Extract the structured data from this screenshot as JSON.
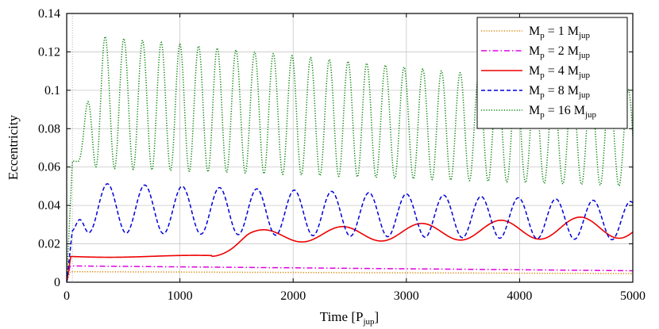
{
  "chart_data": {
    "type": "line",
    "title": "",
    "xlabel": "Time [P",
    "xlabel_sub": "jup",
    "xlabel_suffix": "]",
    "ylabel": "Eccentricity",
    "xlim": [
      0,
      5000
    ],
    "ylim": [
      0,
      0.14
    ],
    "xticks": [
      0,
      1000,
      2000,
      3000,
      4000,
      5000
    ],
    "xtick_labels": [
      "0",
      "1000",
      "2000",
      "3000",
      "4000",
      "5000"
    ],
    "yticks": [
      0,
      0.02,
      0.04,
      0.06,
      0.08,
      0.1,
      0.12,
      0.14
    ],
    "ytick_labels": [
      "0",
      "0.02",
      "0.04",
      "0.06",
      "0.08",
      "0.1",
      "0.12",
      "0.14"
    ],
    "grid": true,
    "legend_position": "top-right",
    "series": [
      {
        "name": "Mp = 1 Mjup",
        "legend": {
          "pre": "M",
          "pre_sub": "p",
          "mid": " = 1 M",
          "post_sub": "jup"
        },
        "color": "#d98200",
        "dash": "dotted",
        "model": {
          "kind": "flat",
          "e_start": 0.0055,
          "e_end": 0.0045
        }
      },
      {
        "name": "Mp = 2 Mjup",
        "legend": {
          "pre": "M",
          "pre_sub": "p",
          "mid": " = 2 M",
          "post_sub": "jup"
        },
        "color": "#e000e0",
        "dash": "dashdot",
        "model": {
          "kind": "flat",
          "e_start": 0.0085,
          "e_end": 0.006
        }
      },
      {
        "name": "Mp = 4 Mjup",
        "legend": {
          "pre": "M",
          "pre_sub": "p",
          "mid": " = 4 M",
          "post_sub": "jup"
        },
        "color": "#ee0000",
        "dash": "solid",
        "model": {
          "kind": "plateau_osc",
          "plateau": 0.0135,
          "plateau_end": 1280,
          "onset": 1380,
          "period": 700,
          "start_mean": 0.0235,
          "end_mean": 0.029,
          "start_amp": 0.003,
          "end_amp": 0.006
        }
      },
      {
        "name": "Mp = 8 Mjup",
        "legend": {
          "pre": "M",
          "pre_sub": "p",
          "mid": " = 8 M",
          "post_sub": "jup"
        },
        "color": "#0000dd",
        "dash": "dashed",
        "model": {
          "kind": "osc",
          "early_peak": 0.027,
          "period": 330,
          "phase_peak": 360,
          "start_mean": 0.039,
          "end_mean": 0.032,
          "start_amp": 0.013,
          "end_amp": 0.01
        }
      },
      {
        "name": "Mp = 16 Mjup",
        "legend": {
          "pre": "M",
          "pre_sub": "p",
          "mid": " = 16 M",
          "post_sub": "jup"
        },
        "color": "#008000",
        "dash": "dotted",
        "model": {
          "kind": "osc",
          "early_peak": 0.063,
          "period": 165,
          "phase_peak": 505,
          "start_mean": 0.095,
          "end_mean": 0.075,
          "start_amp": 0.035,
          "end_amp": 0.025
        }
      }
    ]
  }
}
